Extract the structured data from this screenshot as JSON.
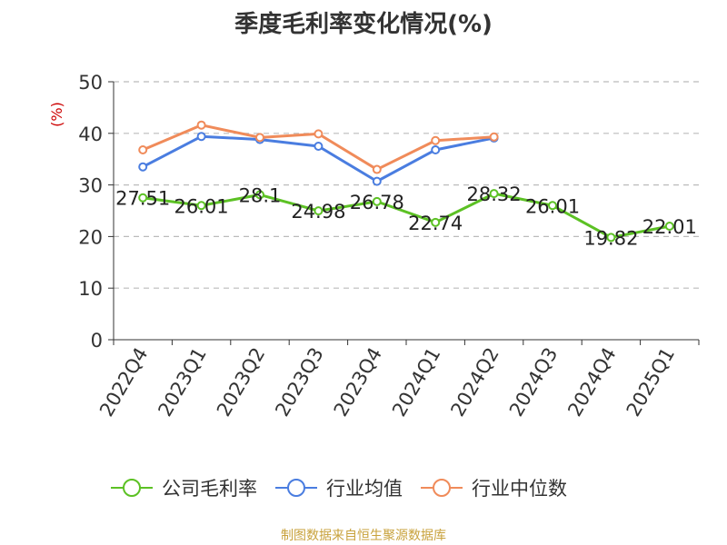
{
  "chart_data": {
    "type": "line",
    "title": "季度毛利率变化情况(%)",
    "ylabel": "(%)",
    "xlabel": "",
    "ylim": [
      0,
      50
    ],
    "yticks": [
      0,
      10,
      20,
      30,
      40,
      50
    ],
    "categories": [
      "2022Q4",
      "2023Q1",
      "2023Q2",
      "2023Q3",
      "2023Q4",
      "2024Q1",
      "2024Q2",
      "2024Q3",
      "2024Q4",
      "2025Q1"
    ],
    "grid": true,
    "legend_position": "bottom",
    "series": [
      {
        "name": "公司毛利率",
        "color": "#5cc124",
        "values": [
          27.51,
          26.01,
          28.1,
          24.98,
          26.78,
          22.74,
          28.32,
          26.01,
          19.82,
          22.01
        ],
        "labels": [
          "27.51",
          "26.01",
          "28.1",
          "24.98",
          "26.78",
          "22.74",
          "28.32",
          "26.01",
          "19.82",
          "22.01"
        ]
      },
      {
        "name": "行业均值",
        "color": "#4a7de0",
        "values": [
          33.5,
          39.4,
          38.8,
          37.5,
          30.7,
          36.8,
          39.1,
          null,
          null,
          null
        ]
      },
      {
        "name": "行业中位数",
        "color": "#f08b5a",
        "values": [
          36.8,
          41.6,
          39.2,
          39.9,
          33.0,
          38.6,
          39.3,
          null,
          null,
          null
        ]
      }
    ]
  },
  "source": "制图数据来自恒生聚源数据库"
}
